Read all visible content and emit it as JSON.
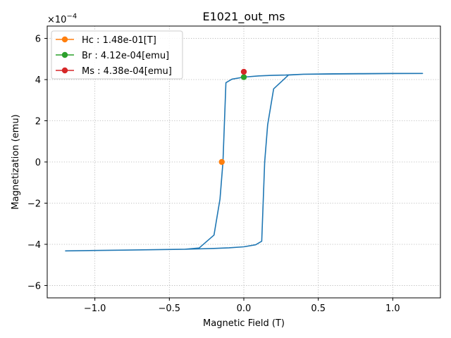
{
  "chart_data": {
    "type": "line",
    "title": "E1021_out_ms",
    "xlabel": "Magnetic Field (T)",
    "ylabel": "Magnetization (emu)",
    "y_offset_text": "×10",
    "y_offset_exp": "−4",
    "xlim": [
      -1.32,
      1.32
    ],
    "ylim": [
      -6.6,
      6.6
    ],
    "y_scale_factor": 0.0001,
    "grid": true,
    "legend_placement": "top-left",
    "x_ticks": [
      -1.0,
      -0.5,
      0.0,
      0.5,
      1.0
    ],
    "x_tick_labels": [
      "−1.0",
      "−0.5",
      "0.0",
      "0.5",
      "1.0"
    ],
    "y_ticks": [
      -6,
      -4,
      -2,
      0,
      2,
      4,
      6
    ],
    "y_tick_labels": [
      "−6",
      "−4",
      "−2",
      "0",
      "2",
      "4",
      "6"
    ],
    "series": [
      {
        "color": "#1f77b4",
        "x": [
          -1.2,
          -1.0,
          -0.8,
          -0.6,
          -0.4,
          -0.3,
          -0.2,
          -0.16,
          -0.14,
          -0.12,
          -0.08,
          0.0,
          0.1,
          0.2,
          0.28,
          0.4,
          0.6,
          0.8,
          1.0,
          1.2,
          1.0,
          0.8,
          0.6,
          0.4,
          0.3,
          0.2,
          0.16,
          0.14,
          0.12,
          0.08,
          0.0,
          -0.1,
          -0.2,
          -0.4,
          -0.6,
          -0.8,
          -1.0,
          -1.2
        ],
        "y": [
          -4.32,
          -4.3,
          -4.28,
          -4.26,
          -4.24,
          -4.18,
          -3.55,
          -1.8,
          0.0,
          3.85,
          4.02,
          4.12,
          4.18,
          4.21,
          4.22,
          4.26,
          4.27,
          4.28,
          4.29,
          4.3,
          4.3,
          4.29,
          4.28,
          4.26,
          4.22,
          3.55,
          1.8,
          0.0,
          -3.85,
          -4.02,
          -4.12,
          -4.17,
          -4.2,
          -4.24,
          -4.26,
          -4.28,
          -4.3,
          -4.32
        ]
      }
    ],
    "markers": [
      {
        "label": "Hc : 1.48e-01[T]",
        "color": "#ff7f0e",
        "x": -0.148,
        "y": 0.0
      },
      {
        "label": "Br : 4.12e-04[emu]",
        "color": "#2ca02c",
        "x": 0.0,
        "y": 4.12
      },
      {
        "label": "Ms : 4.38e-04[emu]",
        "color": "#d62728",
        "x": 0.0,
        "y": 4.38
      }
    ]
  }
}
